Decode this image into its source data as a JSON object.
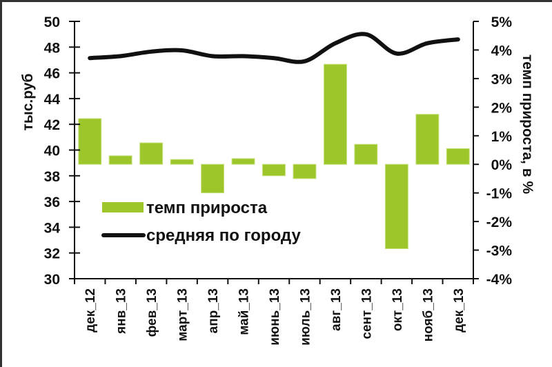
{
  "chart_data": {
    "type": "bar+line",
    "title": "",
    "categories": [
      "дек_12",
      "янв_13",
      "фев_13",
      "март_13",
      "апр_13",
      "май_13",
      "июнь_13",
      "июль_13",
      "авг_13",
      "сент_13",
      "окт_13",
      "нояб_13",
      "дек_13"
    ],
    "series": [
      {
        "name": "темп прироста",
        "type": "bar",
        "axis": "right",
        "color": "#9dc62a",
        "unit": "%",
        "values": [
          1.6,
          0.3,
          0.75,
          0.17,
          -1.0,
          0.2,
          -0.4,
          -0.5,
          3.5,
          0.7,
          -2.95,
          1.75,
          0.55
        ]
      },
      {
        "name": "средняя по городу",
        "type": "line",
        "axis": "left",
        "color": "#111111",
        "unit": "тыс.руб",
        "values": [
          47.15,
          47.3,
          47.65,
          47.75,
          47.3,
          47.3,
          47.15,
          46.9,
          48.3,
          49.0,
          47.5,
          48.3,
          48.6
        ]
      }
    ],
    "left_axis": {
      "label": "тыс.руб",
      "min": 30,
      "max": 50,
      "step": 2,
      "ticks": [
        "30",
        "32",
        "34",
        "36",
        "38",
        "40",
        "42",
        "44",
        "46",
        "48",
        "50"
      ]
    },
    "right_axis": {
      "label": "темп прироста, в %",
      "min": -4,
      "max": 5,
      "step": 1,
      "ticks": [
        "-4%",
        "-3%",
        "-2%",
        "-1%",
        "0%",
        "1%",
        "2%",
        "3%",
        "4%",
        "5%"
      ]
    },
    "xlabel": "",
    "grid": false,
    "legend": {
      "position": "inside-lower-left",
      "entries": [
        "темп прироста",
        "средняя по городу"
      ]
    }
  }
}
